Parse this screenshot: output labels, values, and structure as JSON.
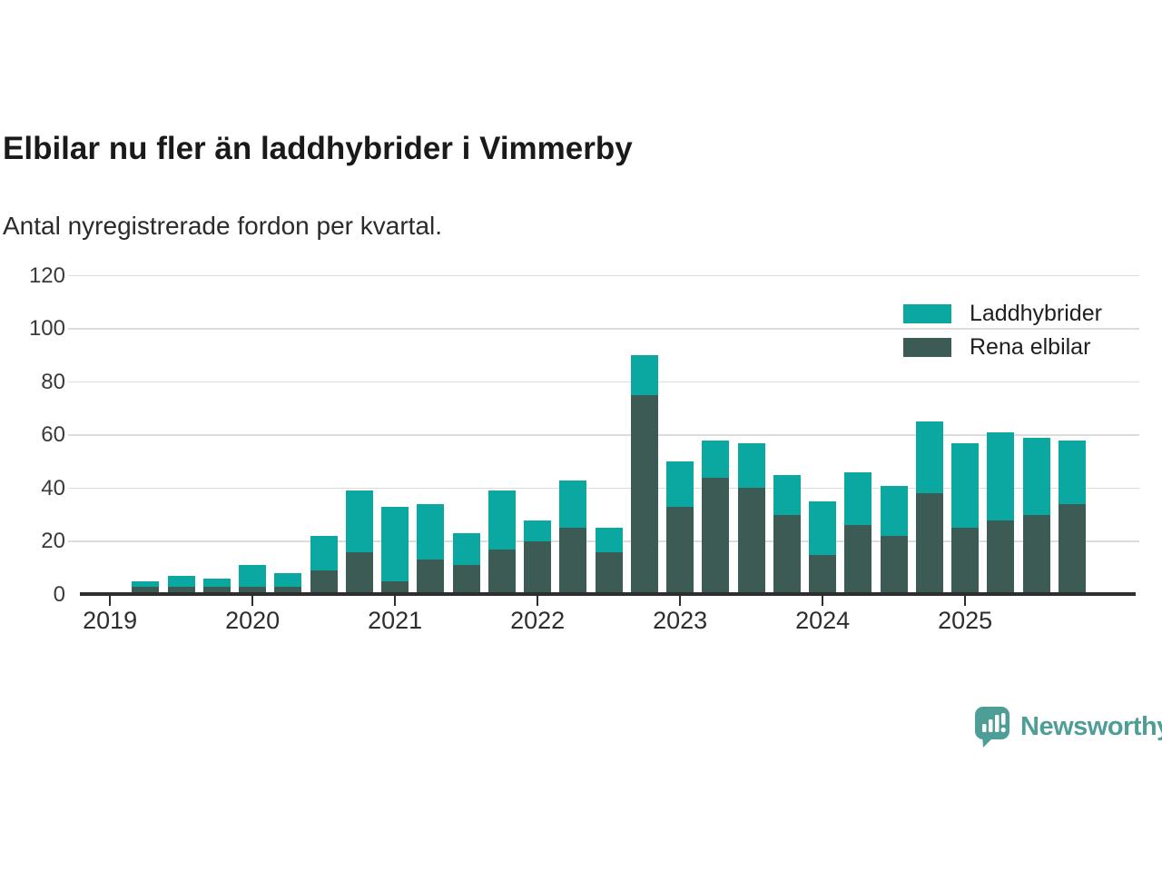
{
  "title": "Elbilar nu fler än laddhybrider i Vimmerby",
  "subtitle": "Antal nyregistrerade fordon per kvartal.",
  "colors": {
    "laddhybrider": "#0AA8A1",
    "rena_elbilar": "#3D5B55",
    "brand_teal": "#4E9E97",
    "gridline": "#dcdcdc",
    "axis": "#2e2e2e"
  },
  "legend": {
    "items": [
      {
        "label": "Laddhybrider",
        "color": "#0AA8A1"
      },
      {
        "label": "Rena elbilar",
        "color": "#3D5B55"
      }
    ]
  },
  "chart_data": {
    "type": "bar",
    "stacked": true,
    "title": "Elbilar nu fler än laddhybrider i Vimmerby",
    "subtitle": "Antal nyregistrerade fordon per kvartal.",
    "xlabel": "",
    "ylabel": "",
    "categories": [
      "Q2 2019",
      "Q3 2019",
      "Q4 2019",
      "Q1 2020",
      "Q2 2020",
      "Q3 2020",
      "Q4 2020",
      "Q1 2021",
      "Q2 2021",
      "Q3 2021",
      "Q4 2021",
      "Q1 2022",
      "Q2 2022",
      "Q3 2022",
      "Q4 2022",
      "Q1 2023",
      "Q2 2023",
      "Q3 2023",
      "Q4 2023",
      "Q1 2024",
      "Q2 2024",
      "Q3 2024",
      "Q4 2024",
      "Q1 2025",
      "Q2 2025",
      "Q3 2025",
      "Q4 2025"
    ],
    "series": [
      {
        "name": "Laddhybrider",
        "color": "#0AA8A1",
        "values": [
          2,
          4,
          3,
          8,
          5,
          13,
          23,
          28,
          21,
          12,
          22,
          8,
          18,
          9,
          15,
          17,
          14,
          17,
          15,
          20,
          20,
          19,
          27,
          32,
          33,
          29,
          24
        ]
      },
      {
        "name": "Rena elbilar",
        "color": "#3D5B55",
        "values": [
          3,
          3,
          3,
          3,
          3,
          9,
          16,
          5,
          13,
          11,
          17,
          20,
          25,
          16,
          75,
          33,
          44,
          40,
          30,
          15,
          26,
          22,
          38,
          25,
          28,
          30,
          34
        ]
      }
    ],
    "totals": [
      5,
      7,
      6,
      11,
      8,
      22,
      39,
      33,
      34,
      23,
      39,
      28,
      43,
      25,
      90,
      50,
      58,
      57,
      45,
      35,
      46,
      41,
      65,
      57,
      61,
      59,
      58
    ],
    "x_tick_labels": [
      "2019",
      "2020",
      "2021",
      "2022",
      "2023",
      "2024",
      "2025"
    ],
    "y_ticks": [
      0,
      20,
      40,
      60,
      80,
      100,
      120
    ],
    "ylim": [
      0,
      120
    ],
    "grid": "horizontal",
    "legend_position": "top-right"
  },
  "footer": {
    "brand": "Newsworthy"
  }
}
